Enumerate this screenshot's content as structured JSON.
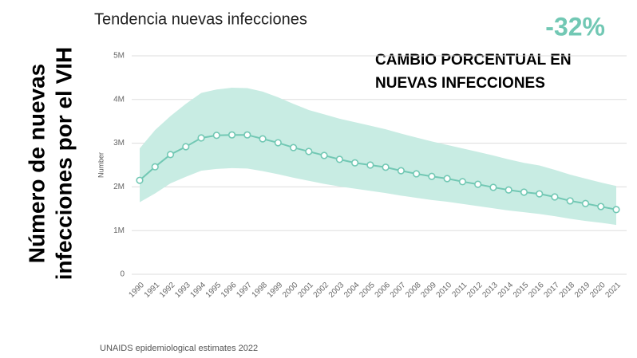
{
  "chart_data": {
    "type": "line",
    "title": "Tendencia nuevas infecciones",
    "y_label_lines": [
      "Número de nuevas",
      "infecciones por el VIH"
    ],
    "y_axis_title": "Number",
    "annotations": [
      "-32%",
      "CAMBIO PORCENTUAL EN",
      "NUEVAS INFECCIONES"
    ],
    "source": "UNAIDS epidemiological estimates 2022",
    "categories": [
      "1990",
      "1991",
      "1992",
      "1993",
      "1994",
      "1995",
      "1996",
      "1997",
      "1998",
      "1999",
      "2000",
      "2001",
      "2002",
      "2003",
      "2004",
      "2005",
      "2006",
      "2007",
      "2008",
      "2009",
      "2010",
      "2011",
      "2012",
      "2013",
      "2014",
      "2015",
      "2016",
      "2017",
      "2018",
      "2019",
      "2020",
      "2021"
    ],
    "series": [
      {
        "color": "#72c8b4",
        "band_color": "#c8ece3",
        "values": [
          2150000,
          2460000,
          2740000,
          2920000,
          3120000,
          3180000,
          3190000,
          3190000,
          3100000,
          3010000,
          2900000,
          2810000,
          2720000,
          2630000,
          2550000,
          2500000,
          2450000,
          2370000,
          2300000,
          2240000,
          2190000,
          2120000,
          2060000,
          1990000,
          1930000,
          1880000,
          1840000,
          1770000,
          1680000,
          1620000,
          1550000,
          1480000
        ],
        "upper": [
          2880000,
          3300000,
          3620000,
          3900000,
          4150000,
          4230000,
          4270000,
          4260000,
          4180000,
          4050000,
          3900000,
          3760000,
          3660000,
          3560000,
          3480000,
          3400000,
          3320000,
          3220000,
          3130000,
          3040000,
          2960000,
          2880000,
          2800000,
          2720000,
          2630000,
          2550000,
          2490000,
          2390000,
          2280000,
          2190000,
          2100000,
          2020000
        ],
        "lower": [
          1650000,
          1850000,
          2080000,
          2230000,
          2370000,
          2410000,
          2430000,
          2420000,
          2360000,
          2290000,
          2210000,
          2140000,
          2070000,
          2010000,
          1960000,
          1910000,
          1860000,
          1800000,
          1750000,
          1700000,
          1660000,
          1610000,
          1560000,
          1510000,
          1460000,
          1420000,
          1380000,
          1330000,
          1270000,
          1220000,
          1180000,
          1130000
        ]
      }
    ],
    "ylim": [
      0,
      5000000
    ],
    "yticks": [
      0,
      {
        "value": 1000000,
        "label": "1M"
      },
      {
        "value": 2000000,
        "label": "2M"
      },
      {
        "value": 3000000,
        "label": "3M"
      },
      {
        "value": 4000000,
        "label": "4M"
      },
      {
        "value": 5000000,
        "label": "5M"
      }
    ],
    "grid": true
  }
}
